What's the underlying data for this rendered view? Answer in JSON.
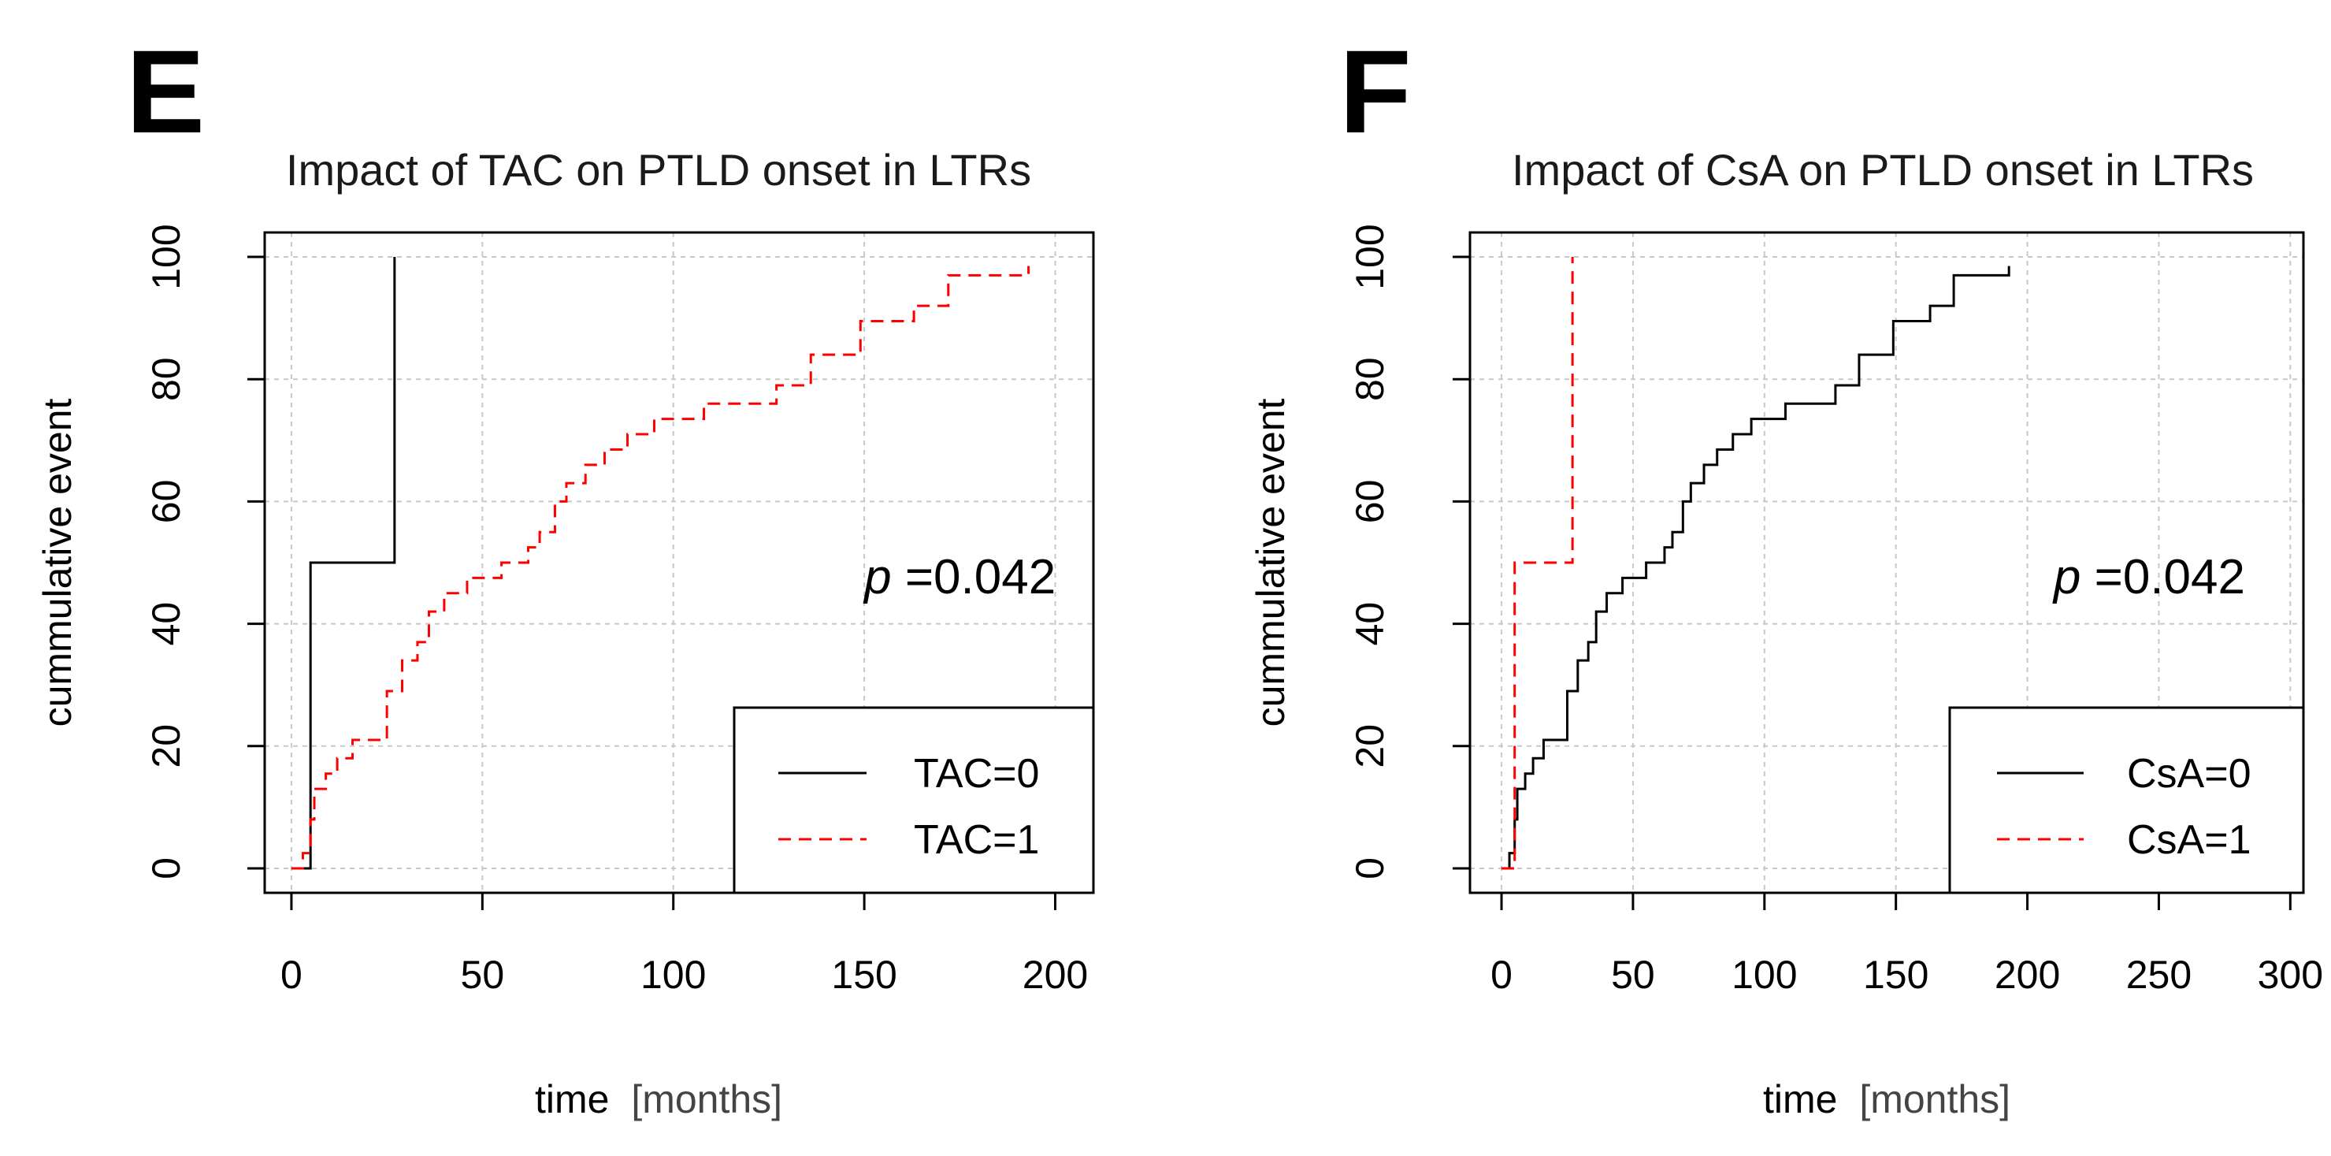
{
  "chart_data": [
    {
      "panel_letter": "E",
      "type": "line",
      "title": "Impact of TAC on PTLD onset in LTRs",
      "xlabel": "time [months]",
      "xlabel_parts": [
        "time",
        "[months]"
      ],
      "ylabel": "cummulative event",
      "xlim": [
        -7,
        210
      ],
      "ylim": [
        -4,
        104
      ],
      "xticks": [
        0,
        50,
        100,
        150,
        200
      ],
      "xtick_labels": [
        "0",
        "50",
        "100",
        "150",
        "200"
      ],
      "yticks": [
        0,
        20,
        40,
        60,
        80,
        100
      ],
      "ytick_labels": [
        "0",
        "20",
        "40",
        "60",
        "80",
        "100"
      ],
      "grid": true,
      "annotation": {
        "prefix": "p",
        "text": "=0.042",
        "x": 150,
        "y": 45
      },
      "legend": {
        "position": "bottom-right"
      },
      "series": [
        {
          "name": "TAC=0",
          "color": "#000000",
          "style": "solid",
          "steps": [
            [
              0,
              0
            ],
            [
              5,
              50
            ],
            [
              27,
              100
            ]
          ]
        },
        {
          "name": "TAC=1",
          "color": "#ff0000",
          "style": "dashed",
          "steps": [
            [
              0,
              0
            ],
            [
              3,
              2.5
            ],
            [
              5,
              8
            ],
            [
              6,
              13
            ],
            [
              9,
              15.5
            ],
            [
              12,
              18
            ],
            [
              16,
              21
            ],
            [
              25,
              29
            ],
            [
              29,
              34
            ],
            [
              33,
              37
            ],
            [
              36,
              42
            ],
            [
              40,
              45
            ],
            [
              46,
              47.5
            ],
            [
              55,
              50
            ],
            [
              62,
              52.5
            ],
            [
              65,
              55
            ],
            [
              69,
              60
            ],
            [
              72,
              63
            ],
            [
              77,
              66
            ],
            [
              82,
              68.5
            ],
            [
              88,
              71
            ],
            [
              95,
              73.5
            ],
            [
              108,
              76
            ],
            [
              127,
              79
            ],
            [
              136,
              84
            ],
            [
              149,
              89.5
            ],
            [
              163,
              92
            ],
            [
              172,
              97
            ],
            [
              193,
              98.5
            ]
          ]
        }
      ]
    },
    {
      "panel_letter": "F",
      "type": "line",
      "title": "Impact of CsA on PTLD onset in LTRs",
      "xlabel": "time [months]",
      "xlabel_parts": [
        "time",
        "[months]"
      ],
      "ylabel": "cummulative event",
      "xlim": [
        -12,
        305
      ],
      "ylim": [
        -4,
        104
      ],
      "xticks": [
        0,
        50,
        100,
        150,
        200,
        250,
        300
      ],
      "xtick_labels": [
        "0",
        "50",
        "100",
        "150",
        "200",
        "250",
        "300"
      ],
      "yticks": [
        0,
        20,
        40,
        60,
        80,
        100
      ],
      "ytick_labels": [
        "0",
        "20",
        "40",
        "60",
        "80",
        "100"
      ],
      "grid": true,
      "annotation": {
        "prefix": "p",
        "text": "=0.042",
        "x": 210,
        "y": 45
      },
      "legend": {
        "position": "bottom-right"
      },
      "series": [
        {
          "name": "CsA=0",
          "color": "#000000",
          "style": "solid",
          "steps": [
            [
              0,
              0
            ],
            [
              3,
              2.5
            ],
            [
              5,
              8
            ],
            [
              6,
              13
            ],
            [
              9,
              15.5
            ],
            [
              12,
              18
            ],
            [
              16,
              21
            ],
            [
              25,
              29
            ],
            [
              29,
              34
            ],
            [
              33,
              37
            ],
            [
              36,
              42
            ],
            [
              40,
              45
            ],
            [
              46,
              47.5
            ],
            [
              55,
              50
            ],
            [
              62,
              52.5
            ],
            [
              65,
              55
            ],
            [
              69,
              60
            ],
            [
              72,
              63
            ],
            [
              77,
              66
            ],
            [
              82,
              68.5
            ],
            [
              88,
              71
            ],
            [
              95,
              73.5
            ],
            [
              108,
              76
            ],
            [
              127,
              79
            ],
            [
              136,
              84
            ],
            [
              149,
              89.5
            ],
            [
              163,
              92
            ],
            [
              172,
              97
            ],
            [
              193,
              98.5
            ]
          ]
        },
        {
          "name": "CsA=1",
          "color": "#ff0000",
          "style": "dashed",
          "steps": [
            [
              0,
              0
            ],
            [
              5,
              50
            ],
            [
              27,
              100
            ]
          ]
        }
      ]
    }
  ]
}
